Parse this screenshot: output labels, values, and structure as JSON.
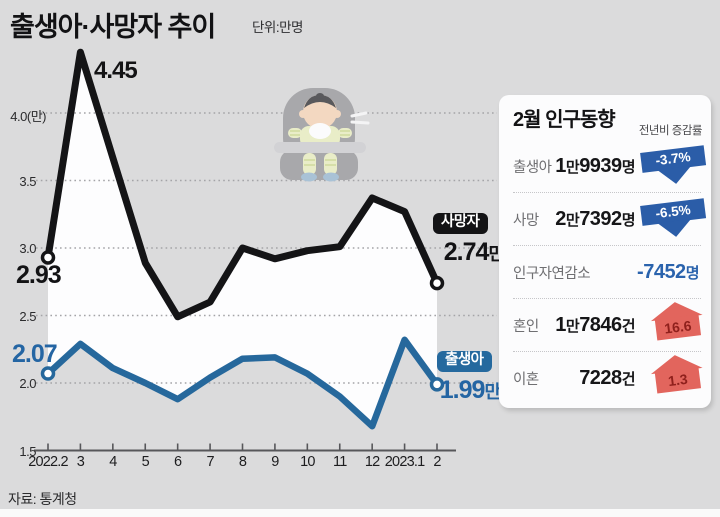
{
  "title": "출생아·사망자 추이",
  "unit_label": "단위:만명",
  "source": "자료: 통계청",
  "colors": {
    "background": "#dbdbdc",
    "death_line": "#141416",
    "birth_line": "#26689c",
    "accent_blue_arrow": "#2b5da8",
    "accent_red_arrow": "#e2655d",
    "panel_value_blue": "#2a63ad"
  },
  "icons": {
    "baby": "baby-in-highchair-illustration",
    "down": "down-arrow",
    "up": "up-arrow"
  },
  "badges": {
    "death": "사망자",
    "birth": "출생아"
  },
  "chart_data": {
    "type": "line",
    "title": "출생아·사망자 추이",
    "unit": "만명",
    "categories": [
      "2022.2",
      "3",
      "4",
      "5",
      "6",
      "7",
      "8",
      "9",
      "10",
      "11",
      "12",
      "2023.1",
      "2"
    ],
    "series": [
      {
        "name": "사망자",
        "color": "#141416",
        "values": [
          2.93,
          4.45,
          3.67,
          2.89,
          2.49,
          2.6,
          3.0,
          2.92,
          2.98,
          3.01,
          3.37,
          3.27,
          2.74
        ]
      },
      {
        "name": "출생아",
        "color": "#26689c",
        "values": [
          2.07,
          2.29,
          2.11,
          2.0,
          1.88,
          2.04,
          2.18,
          2.19,
          2.07,
          1.9,
          1.68,
          2.32,
          1.99
        ]
      }
    ],
    "ylim": [
      1.5,
      4.5
    ],
    "yticks": [
      "4.0(만)",
      "3.5",
      "3.0",
      "2.5",
      "2.0",
      "1.5"
    ],
    "ytick_values": [
      4.0,
      3.5,
      3.0,
      2.5,
      2.0,
      1.5
    ],
    "grid": "dotted-horizontal",
    "legend_position": "inline-right",
    "annotations": {
      "death_start": "2.93",
      "death_peak": "4.45",
      "death_end": "2.74만",
      "birth_start": "2.07",
      "birth_end": "1.99만"
    }
  },
  "panel": {
    "title": "2월 인구동향",
    "col_note": "전년비 증감률",
    "rows": [
      {
        "label": "출생아",
        "value": "1만9939명",
        "change": "-3.7%",
        "direction": "down"
      },
      {
        "label": "사망",
        "value": "2만7392명",
        "change": "-6.5%",
        "direction": "down"
      },
      {
        "label": "인구자연감소",
        "value": "-7452명",
        "change": "",
        "direction": "none"
      },
      {
        "label": "혼인",
        "value": "1만7846건",
        "change": "16.6",
        "direction": "up"
      },
      {
        "label": "이혼",
        "value": "7228건",
        "change": "1.3",
        "direction": "up"
      }
    ]
  }
}
